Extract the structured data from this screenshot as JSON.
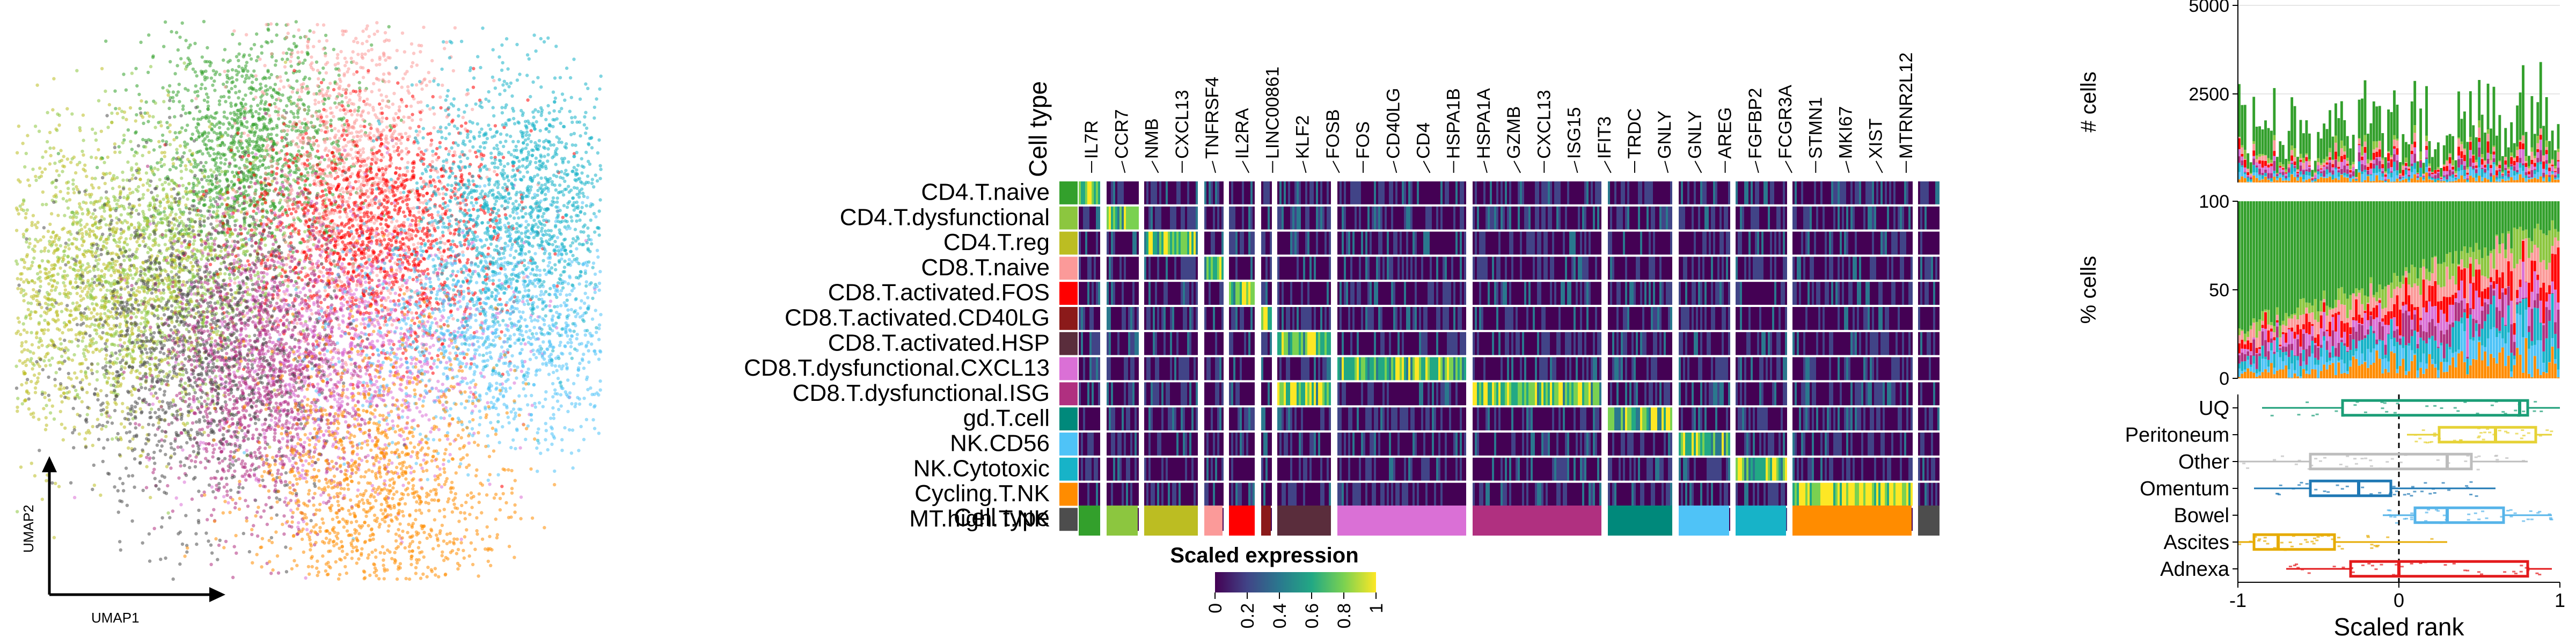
{
  "umap": {
    "x_label": "UMAP1",
    "y_label": "UMAP2"
  },
  "heatmap": {
    "cell_type_header": "Cell type",
    "bottom_row_label": "Cell type",
    "cell_types": [
      {
        "name": "CD4.T.naive",
        "color": "#33a02c"
      },
      {
        "name": "CD4.T.dysfunctional",
        "color": "#8cc63f"
      },
      {
        "name": "CD4.T.reg",
        "color": "#bcbd22"
      },
      {
        "name": "CD8.T.naive",
        "color": "#fb9a99"
      },
      {
        "name": "CD8.T.activated.FOS",
        "color": "#ff0000"
      },
      {
        "name": "CD8.T.activated.CD40LG",
        "color": "#8b1a1a"
      },
      {
        "name": "CD8.T.activated.HSP",
        "color": "#5a2d3c"
      },
      {
        "name": "CD8.T.dysfunctional.CXCL13",
        "color": "#da70d6"
      },
      {
        "name": "CD8.T.dysfunctional.ISG",
        "color": "#b03080"
      },
      {
        "name": "gd.T.cell",
        "color": "#00897b"
      },
      {
        "name": "NK.CD56",
        "color": "#4fc3f7"
      },
      {
        "name": "NK.Cytotoxic",
        "color": "#17b3c8"
      },
      {
        "name": "Cycling.T.NK",
        "color": "#ff8c00"
      },
      {
        "name": "MT.high.T.NK",
        "color": "#4d4d4d"
      }
    ],
    "genes": [
      "IL7R",
      "CCR7",
      "NMB",
      "CXCL13",
      "TNFRSF4",
      "IL2RA",
      "LINC00861",
      "KLF2",
      "FOSB",
      "FOS",
      "CD40LG",
      "CD4",
      "HSPA1B",
      "HSPA1A",
      "GZMB",
      "CXCL13",
      "ISG15",
      "IFIT3",
      "TRDC",
      "GNLY",
      "GNLY",
      "AREG",
      "FGFBP2",
      "FCGR3A",
      "STMN1",
      "MKI67",
      "XIST",
      "MTRNR2L12"
    ],
    "block_widths": [
      40,
      58,
      100,
      34,
      48,
      18,
      100,
      240,
      240,
      120,
      94,
      94,
      222,
      40
    ],
    "colorbar": {
      "title": "Scaled expression",
      "ticks": [
        "0",
        "0.2",
        "0.4",
        "0.6",
        "0.8",
        "1"
      ],
      "tick_values": [
        0,
        0.2,
        0.4,
        0.6,
        0.8,
        1
      ],
      "colors": [
        "#440154",
        "#414487",
        "#2a788e",
        "#22a884",
        "#7ad151",
        "#fde725"
      ]
    }
  },
  "chart_data": [
    {
      "type": "scatter",
      "description_role": "umap",
      "xlabel": "UMAP1",
      "ylabel": "UMAP2",
      "series": [
        {
          "name": "CD4.T.naive",
          "color": "#33a02c",
          "center": [
            0.4,
            0.78
          ]
        },
        {
          "name": "CD4.T.dysfunctional",
          "color": "#8cc63f",
          "center": [
            0.22,
            0.55
          ]
        },
        {
          "name": "CD4.T.reg",
          "color": "#bcbd22",
          "center": [
            0.12,
            0.52
          ]
        },
        {
          "name": "CD8.T.naive",
          "color": "#fb9a99",
          "center": [
            0.58,
            0.72
          ]
        },
        {
          "name": "CD8.T.activated.FOS",
          "color": "#ff0000",
          "center": [
            0.62,
            0.62
          ]
        },
        {
          "name": "CD8.T.dysfunctional.CXCL13",
          "color": "#da70d6",
          "center": [
            0.55,
            0.4
          ]
        },
        {
          "name": "CD8.T.dysfunctional.ISG",
          "color": "#b03080",
          "center": [
            0.42,
            0.38
          ]
        },
        {
          "name": "MT.high.T.NK",
          "color": "#4d4d4d",
          "center": [
            0.3,
            0.42
          ]
        },
        {
          "name": "NK.CD56",
          "color": "#4fc3f7",
          "center": [
            0.84,
            0.45
          ]
        },
        {
          "name": "NK.Cytotoxic",
          "color": "#17b3c8",
          "center": [
            0.86,
            0.68
          ]
        },
        {
          "name": "Cycling.T.NK",
          "color": "#ff8c00",
          "center": [
            0.62,
            0.16
          ]
        }
      ]
    },
    {
      "type": "bar",
      "ylabel": "# cells",
      "y_ticks": [
        2500,
        5000
      ],
      "ylim": [
        0,
        5000
      ],
      "stacked": true
    },
    {
      "type": "bar",
      "ylabel": "% cells",
      "y_ticks": [
        0,
        50,
        100
      ],
      "ylim": [
        0,
        100
      ],
      "stacked": true
    },
    {
      "type": "scatter",
      "subtype": "boxplot",
      "xlabel": "Scaled rank",
      "x_ticks": [
        -1,
        0,
        1
      ],
      "xlim": [
        -1,
        1
      ],
      "categories": [
        "UQ",
        "Peritoneum",
        "Other",
        "Omentum",
        "Bowel",
        "Ascites",
        "Adnexa"
      ],
      "colors": [
        "#1b9e77",
        "#e6d236",
        "#bdbdbd",
        "#1f78b4",
        "#56b4e9",
        "#e6ab02",
        "#e31a1c"
      ],
      "boxes": [
        {
          "site": "UQ",
          "whisker_low": -0.85,
          "q1": -0.35,
          "median": 0.75,
          "q3": 0.8,
          "whisker_high": 1.0
        },
        {
          "site": "Peritoneum",
          "whisker_low": 0.05,
          "q1": 0.25,
          "median": 0.6,
          "q3": 0.85,
          "whisker_high": 0.95
        },
        {
          "site": "Other",
          "whisker_low": -1.0,
          "q1": -0.55,
          "median": 0.3,
          "q3": 0.45,
          "whisker_high": 0.8
        },
        {
          "site": "Omentum",
          "whisker_low": -0.9,
          "q1": -0.55,
          "median": -0.25,
          "q3": -0.05,
          "whisker_high": 0.6
        },
        {
          "site": "Bowel",
          "whisker_low": -0.1,
          "q1": 0.1,
          "median": 0.3,
          "q3": 0.65,
          "whisker_high": 0.95
        },
        {
          "site": "Ascites",
          "whisker_low": -1.0,
          "q1": -0.9,
          "median": -0.75,
          "q3": -0.4,
          "whisker_high": 0.3
        },
        {
          "site": "Adnexa",
          "whisker_low": -0.7,
          "q1": -0.3,
          "median": 0.0,
          "q3": 0.8,
          "whisker_high": 0.95
        }
      ]
    }
  ]
}
